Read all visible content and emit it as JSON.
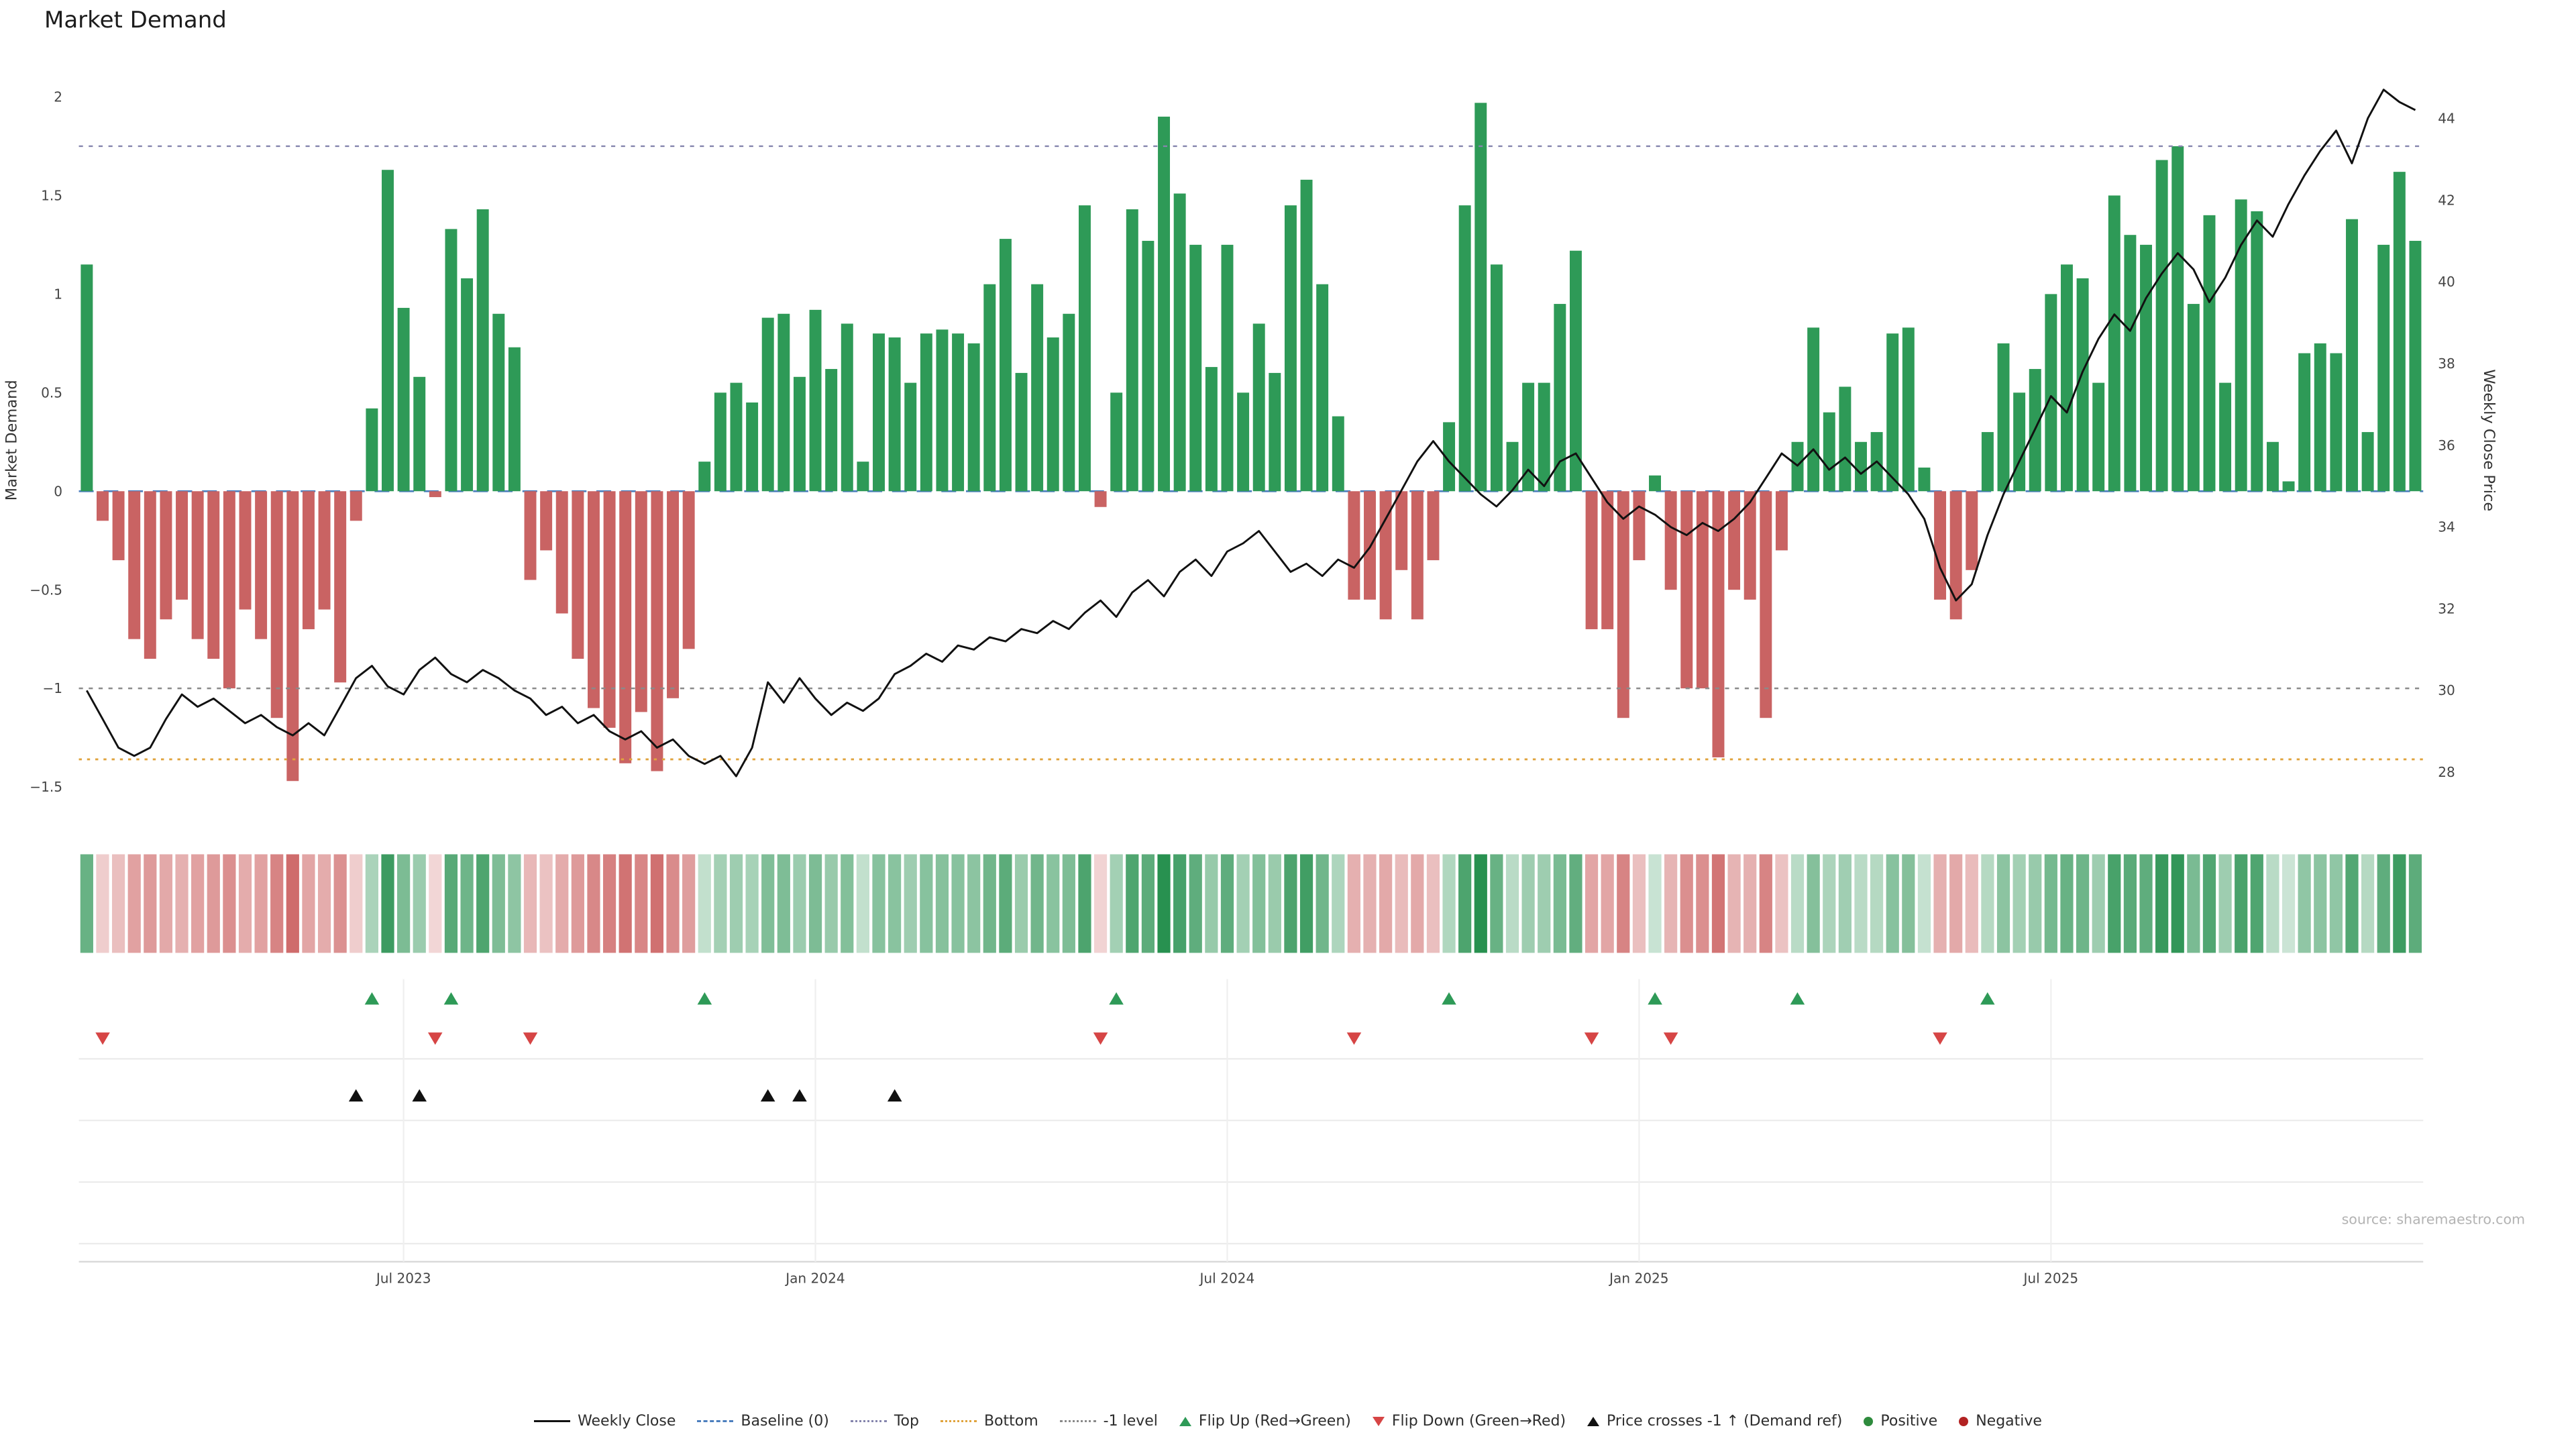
{
  "title": "Market Demand",
  "source": "source: sharemaestro.com",
  "axes": {
    "left_label": "Market Demand",
    "right_label": "Weekly Close Price",
    "left_ticks": [
      {
        "label": "2",
        "value": 2
      },
      {
        "label": "1.5",
        "value": 1.5
      },
      {
        "label": "1",
        "value": 1
      },
      {
        "label": "0.5",
        "value": 0.5
      },
      {
        "label": "0",
        "value": 0
      },
      {
        "label": "−0.5",
        "value": -0.5
      },
      {
        "label": "−1",
        "value": -1
      },
      {
        "label": "−1.5",
        "value": -1.5
      }
    ],
    "right_ticks": [
      {
        "label": "44",
        "value": 44
      },
      {
        "label": "42",
        "value": 42
      },
      {
        "label": "40",
        "value": 40
      },
      {
        "label": "38",
        "value": 38
      },
      {
        "label": "36",
        "value": 36
      },
      {
        "label": "34",
        "value": 34
      },
      {
        "label": "32",
        "value": 32
      },
      {
        "label": "30",
        "value": 30
      },
      {
        "label": "28",
        "value": 28
      }
    ],
    "x_ticks": [
      {
        "label": "Jul 2023",
        "index": 20
      },
      {
        "label": "Jan 2024",
        "index": 46
      },
      {
        "label": "Jul 2024",
        "index": 72
      },
      {
        "label": "Jan 2025",
        "index": 98
      },
      {
        "label": "Jul 2025",
        "index": 124
      }
    ]
  },
  "chart_data": {
    "type": "bar+line",
    "left_range": [
      -1.5,
      2
    ],
    "right_range": [
      28,
      44
    ],
    "levels": {
      "baseline": 0,
      "top": 1.75,
      "bottom": -1.36,
      "minus1": -1
    },
    "series": [
      {
        "name": "Market Demand",
        "type": "bar",
        "axis": "left",
        "values": [
          1.15,
          -0.15,
          -0.35,
          -0.75,
          -0.85,
          -0.65,
          -0.55,
          -0.75,
          -0.85,
          -1.0,
          -0.6,
          -0.75,
          -1.15,
          -1.47,
          -0.7,
          -0.6,
          -0.97,
          -0.15,
          0.42,
          1.63,
          0.93,
          0.58,
          -0.03,
          1.33,
          1.08,
          1.43,
          0.9,
          0.73,
          -0.45,
          -0.3,
          -0.62,
          -0.85,
          -1.1,
          -1.2,
          -1.38,
          -1.12,
          -1.42,
          -1.05,
          -0.8,
          0.15,
          0.5,
          0.55,
          0.45,
          0.88,
          0.9,
          0.58,
          0.92,
          0.62,
          0.85,
          0.15,
          0.8,
          0.78,
          0.55,
          0.8,
          0.82,
          0.8,
          0.75,
          1.05,
          1.28,
          0.6,
          1.05,
          0.78,
          0.9,
          1.45,
          -0.08,
          0.5,
          1.43,
          1.27,
          1.9,
          1.51,
          1.25,
          0.63,
          1.25,
          0.5,
          0.85,
          0.6,
          1.45,
          1.58,
          1.05,
          0.38,
          -0.55,
          -0.55,
          -0.65,
          -0.4,
          -0.65,
          -0.35,
          0.35,
          1.45,
          1.97,
          1.15,
          0.25,
          0.55,
          0.55,
          0.95,
          1.22,
          -0.7,
          -0.7,
          -1.15,
          -0.35,
          0.08,
          -0.5,
          -1.0,
          -1.0,
          -1.35,
          -0.5,
          -0.55,
          -1.15,
          -0.3,
          0.25,
          0.83,
          0.4,
          0.53,
          0.25,
          0.3,
          0.8,
          0.83,
          0.12,
          -0.55,
          -0.65,
          -0.4,
          0.3,
          0.75,
          0.5,
          0.62,
          1.0,
          1.15,
          1.08,
          0.55,
          1.5,
          1.3,
          1.25,
          1.68,
          1.75,
          0.95,
          1.4,
          0.55,
          1.48,
          1.42,
          0.25,
          0.05,
          0.7,
          0.75,
          0.7,
          1.38,
          0.3,
          1.25,
          1.62,
          1.27
        ]
      },
      {
        "name": "Weekly Close",
        "type": "line",
        "axis": "right",
        "values": [
          30.0,
          29.3,
          28.6,
          28.4,
          28.6,
          29.3,
          29.9,
          29.6,
          29.8,
          29.5,
          29.2,
          29.4,
          29.1,
          28.9,
          29.2,
          28.9,
          29.6,
          30.3,
          30.6,
          30.1,
          29.9,
          30.5,
          30.8,
          30.4,
          30.2,
          30.5,
          30.3,
          30.0,
          29.8,
          29.4,
          29.6,
          29.2,
          29.4,
          29.0,
          28.8,
          29.0,
          28.6,
          28.8,
          28.4,
          28.2,
          28.4,
          27.9,
          28.6,
          30.2,
          29.7,
          30.3,
          29.8,
          29.4,
          29.7,
          29.5,
          29.8,
          30.4,
          30.6,
          30.9,
          30.7,
          31.1,
          31.0,
          31.3,
          31.2,
          31.5,
          31.4,
          31.7,
          31.5,
          31.9,
          32.2,
          31.8,
          32.4,
          32.7,
          32.3,
          32.9,
          33.2,
          32.8,
          33.4,
          33.6,
          33.9,
          33.4,
          32.9,
          33.1,
          32.8,
          33.2,
          33.0,
          33.5,
          34.2,
          34.9,
          35.6,
          36.1,
          35.6,
          35.2,
          34.8,
          34.5,
          34.9,
          35.4,
          35.0,
          35.6,
          35.8,
          35.2,
          34.6,
          34.2,
          34.5,
          34.3,
          34.0,
          33.8,
          34.1,
          33.9,
          34.2,
          34.6,
          35.2,
          35.8,
          35.5,
          35.9,
          35.4,
          35.7,
          35.3,
          35.6,
          35.2,
          34.8,
          34.2,
          33.0,
          32.2,
          32.6,
          33.8,
          34.8,
          35.6,
          36.4,
          37.2,
          36.8,
          37.8,
          38.6,
          39.2,
          38.8,
          39.6,
          40.2,
          40.7,
          40.3,
          39.5,
          40.1,
          40.9,
          41.5,
          41.1,
          41.9,
          42.6,
          43.2,
          43.7,
          42.9,
          44.0,
          44.7,
          44.4,
          44.2
        ]
      }
    ],
    "markers": {
      "flip_up_indices": [
        18,
        23,
        39,
        65,
        86,
        99,
        108,
        120
      ],
      "flip_down_indices": [
        1,
        22,
        28,
        64,
        80,
        95,
        100,
        117
      ],
      "price_cross_up_indices": [
        17,
        21,
        43,
        45,
        51
      ]
    }
  },
  "colors": {
    "positive_bar": "#2e9a57",
    "negative_bar": "#c96363",
    "price_line": "#111111",
    "baseline": "#4c7fbe",
    "top_level": "#8585ad",
    "bottom_level": "#e0a33c",
    "minus1_level": "#8a8a8a",
    "flip_up": "#2e9a57",
    "flip_down": "#d64545",
    "price_cross": "#111111",
    "positive_dot": "#2e8b3d",
    "negative_dot": "#b22222",
    "heat_positive": "#289150",
    "heat_negative": "#c65050"
  },
  "legend": [
    {
      "label": "Weekly Close",
      "glyph": "solid-line",
      "color": "#111111"
    },
    {
      "label": "Baseline (0)",
      "glyph": "dashed-line",
      "color": "#4c7fbe"
    },
    {
      "label": "Top",
      "glyph": "dotted-line",
      "color": "#8585ad"
    },
    {
      "label": "Bottom",
      "glyph": "dotted-line",
      "color": "#e0a33c"
    },
    {
      "label": "-1 level",
      "glyph": "dotted-line",
      "color": "#8a8a8a"
    },
    {
      "label": "Flip Up (Red→Green)",
      "glyph": "triangle-up",
      "color": "#2e9a57"
    },
    {
      "label": "Flip Down (Green→Red)",
      "glyph": "triangle-down",
      "color": "#d64545"
    },
    {
      "label": "Price crosses -1 ↑ (Demand ref)",
      "glyph": "triangle-up",
      "color": "#111111"
    },
    {
      "label": "Positive",
      "glyph": "circle",
      "color": "#2e8b3d"
    },
    {
      "label": "Negative",
      "glyph": "circle",
      "color": "#b22222"
    }
  ]
}
